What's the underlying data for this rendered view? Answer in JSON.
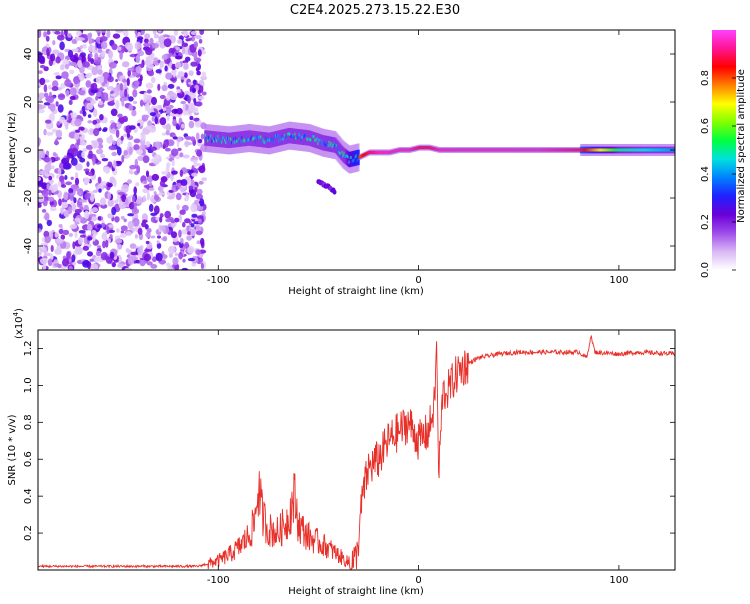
{
  "title": "C2E4.2025.273.15.22.E30",
  "chart_data": [
    {
      "type": "heatmap",
      "description_kind": "spectrogram",
      "xlabel": "Height of straight line (km)",
      "ylabel": "Frequency (Hz)",
      "xlim": [
        -190,
        128
      ],
      "ylim": [
        -50,
        50
      ],
      "xticks": [
        -100,
        0,
        100
      ],
      "yticks": [
        -40,
        -20,
        0,
        20,
        40
      ],
      "noise_region_x": [
        -190,
        -107
      ],
      "signal_track": {
        "x": [
          -107,
          -95,
          -85,
          -75,
          -65,
          -55,
          -48,
          -42,
          -38,
          -35,
          -30,
          -25,
          -20,
          -15,
          -10,
          -5,
          0,
          5,
          10,
          20,
          40,
          60,
          80,
          100,
          128
        ],
        "freq": [
          5,
          4,
          5,
          4,
          6,
          5,
          3,
          2,
          -2,
          -4,
          -3,
          -1,
          -1,
          -1,
          0,
          0,
          1,
          1,
          0,
          0,
          0,
          0,
          0,
          0,
          0
        ],
        "amplitude": [
          0.3,
          0.3,
          0.3,
          0.3,
          0.3,
          0.3,
          0.3,
          0.35,
          0.4,
          0.6,
          0.8,
          0.9,
          0.95,
          0.95,
          0.95,
          0.95,
          0.9,
          0.9,
          0.95,
          0.95,
          0.95,
          0.95,
          0.9,
          0.5,
          0.4
        ]
      },
      "secondary_track": {
        "x": [
          -50,
          -42
        ],
        "freq": [
          -13,
          -17
        ]
      },
      "colorbar": {
        "label": "Normalized spectral amplitude",
        "ticks": [
          0.0,
          0.2,
          0.4,
          0.6,
          0.8
        ],
        "tick_labels": [
          "0.0",
          "0.2",
          "0.4",
          "0.6",
          "0.8"
        ],
        "colors": [
          "#ffffff",
          "#d9b8f5",
          "#9f4dea",
          "#6a00d8",
          "#2020ff",
          "#0080ff",
          "#00e0e0",
          "#00ff40",
          "#80ff00",
          "#ffff00",
          "#ff8000",
          "#ff0000",
          "#ff1493",
          "#ff40ff"
        ]
      }
    },
    {
      "type": "line",
      "xlabel": "Height of straight line (km)",
      "ylabel": "SNR (10 * v/v)",
      "yscale_label": "(x10",
      "yscale_exp": "4",
      "yscale_close": ")",
      "xlim": [
        -190,
        128
      ],
      "ylim": [
        0,
        1.3
      ],
      "xticks": [
        -100,
        0,
        100
      ],
      "yticks": [
        0.2,
        0.4,
        0.6,
        0.8,
        1.0,
        1.2
      ],
      "ytick_labels": [
        "0.2",
        "0.4",
        "0.6",
        "0.8",
        "1.0",
        "1.2"
      ],
      "color": "#e8302a",
      "series": [
        {
          "name": "SNR",
          "x": [
            -190,
            -110,
            -100,
            -95,
            -90,
            -85,
            -82,
            -80,
            -78,
            -75,
            -70,
            -65,
            -62,
            -60,
            -58,
            -55,
            -50,
            -45,
            -40,
            -35,
            -31,
            -28,
            -25,
            -20,
            -15,
            -10,
            -5,
            0,
            5,
            8,
            9,
            10,
            12,
            15,
            20,
            25,
            30,
            40,
            50,
            60,
            80,
            84,
            86,
            88,
            100,
            110,
            128
          ],
          "y": [
            0.02,
            0.02,
            0.05,
            0.08,
            0.12,
            0.18,
            0.25,
            0.45,
            0.3,
            0.22,
            0.2,
            0.28,
            0.4,
            0.25,
            0.22,
            0.18,
            0.15,
            0.12,
            0.08,
            0.04,
            0.05,
            0.4,
            0.55,
            0.6,
            0.7,
            0.75,
            0.8,
            0.7,
            0.75,
            0.9,
            1.25,
            0.5,
            0.95,
            0.98,
            1.08,
            1.12,
            1.15,
            1.17,
            1.18,
            1.18,
            1.18,
            1.15,
            1.27,
            1.18,
            1.17,
            1.18,
            1.17
          ]
        }
      ]
    }
  ]
}
